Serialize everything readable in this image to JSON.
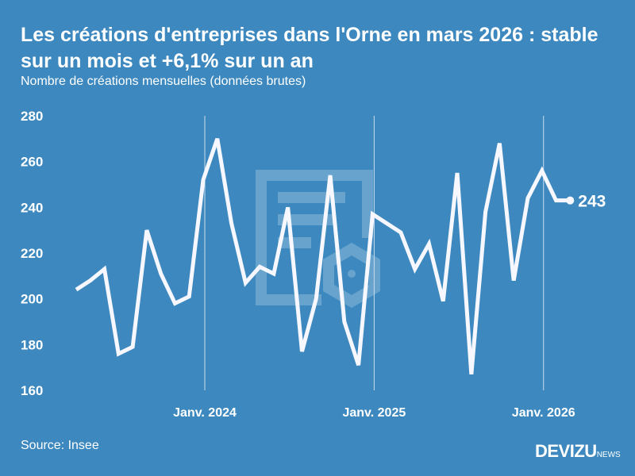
{
  "header": {
    "title": "Les créations d'entreprises dans l'Orne en mars 2026 : stable sur un mois et +6,1% sur un an",
    "subtitle": "Nombre de créations mensuelles (données brutes)"
  },
  "footer": {
    "source": "Source: Insee",
    "logo_main": "DEVIZU",
    "logo_suffix": "NEWS"
  },
  "colors": {
    "background": "#3d89bf",
    "line": "#ffffff"
  },
  "chart_data": {
    "type": "line",
    "title": "Les créations d'entreprises dans l'Orne en mars 2026 : stable sur un mois et +6,1% sur un an",
    "subtitle": "Nombre de créations mensuelles (données brutes)",
    "x_start": "2023-04",
    "x_end": "2026-03",
    "values": [
      204,
      208,
      213,
      176,
      179,
      230,
      211,
      198,
      201,
      252,
      270,
      233,
      207,
      214,
      211,
      240,
      177,
      200,
      254,
      190,
      171,
      237,
      233,
      229,
      213,
      224,
      199,
      255,
      167,
      238,
      268,
      208,
      244,
      256,
      243,
      243
    ],
    "ylim": [
      160,
      280
    ],
    "yticks": [
      "160",
      "180",
      "200",
      "220",
      "240",
      "260",
      "280"
    ],
    "xticks": [
      {
        "label": "Janv. 2024",
        "index": 9
      },
      {
        "label": "Janv. 2025",
        "index": 21
      },
      {
        "label": "Janv. 2026",
        "index": 33
      }
    ],
    "last_label": "243",
    "grid": "vertical lines at January",
    "legend": "none"
  }
}
